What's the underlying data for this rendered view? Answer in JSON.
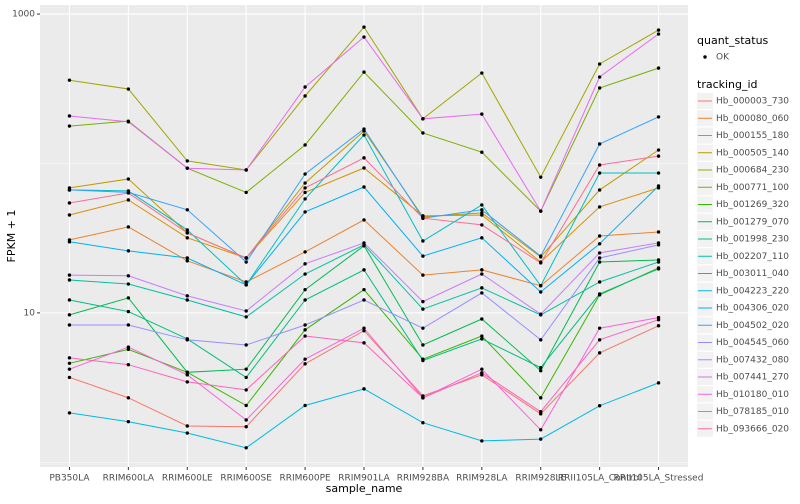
{
  "chart_data": {
    "type": "line",
    "x_label": "sample_name",
    "y_label": "FPKM + 1",
    "categories": [
      "PB350LA",
      "RRIM600LA",
      "RRIM600LE",
      "RRIM600SE",
      "RRIM600PE",
      "RRIM901LA",
      "RRIM928BA",
      "RRIM928LA",
      "RRIM928LE",
      "RRII105LA_Control",
      "RRII105LA_Stressed"
    ],
    "log_scale": true,
    "grid": true,
    "ylim": [
      0.93,
      1150
    ],
    "yticks": [
      10,
      1000
    ],
    "point_color": "#000000",
    "shape_legend": {
      "title": "quant_status",
      "labels": [
        "OK"
      ]
    },
    "color_legend_title": "tracking_id",
    "series": [
      {
        "name": "Hb_000003_730",
        "color": "#F8766D",
        "values": [
          3.7,
          2.7,
          1.75,
          1.73,
          4.56,
          7.6,
          2.78,
          3.85,
          2.11,
          5.4,
          8.2
        ]
      },
      {
        "name": "Hb_000080_060",
        "color": "#EA8331",
        "values": [
          30.8,
          37.6,
          22.3,
          16.1,
          25.6,
          41.9,
          17.9,
          19.4,
          15.2,
          32.7,
          34.8
        ]
      },
      {
        "name": "Hb_000155_180",
        "color": "#D89000",
        "values": [
          45.2,
          57,
          31.8,
          23.3,
          64,
          93.3,
          44.6,
          45.2,
          21.9,
          51.2,
          68.6
        ]
      },
      {
        "name": "Hb_000505_140",
        "color": "#C09B00",
        "values": [
          68.6,
          78.7,
          34.3,
          23.3,
          74,
          165,
          43.9,
          46.7,
          23.7,
          66.5,
          123
        ]
      },
      {
        "name": "Hb_000684_230",
        "color": "#A3A500",
        "values": [
          361,
          315,
          104,
          90.5,
          283,
          818,
          199,
          403,
          81,
          463,
          781
        ]
      },
      {
        "name": "Hb_000771_100",
        "color": "#7CAE00",
        "values": [
          178,
          192,
          93,
          64,
          133,
          409,
          160,
          119,
          48,
          320,
          435
        ]
      },
      {
        "name": "Hb_001269_320",
        "color": "#39B600",
        "values": [
          4.6,
          5.7,
          4.0,
          2.4,
          7.7,
          14.3,
          4.9,
          7.0,
          2.7,
          13.2,
          20
        ]
      },
      {
        "name": "Hb_001279_070",
        "color": "#00BB4E",
        "values": [
          9.7,
          12.6,
          4.0,
          4.2,
          14.3,
          28.1,
          6.1,
          9.1,
          4.1,
          21.9,
          22.6
        ]
      },
      {
        "name": "Hb_001998_230",
        "color": "#00BF7D",
        "values": [
          12.2,
          10.2,
          6.7,
          3.7,
          12.2,
          19.4,
          4.8,
          6.7,
          4.3,
          13.4,
          19.7
        ]
      },
      {
        "name": "Hb_002207_110",
        "color": "#00C1A3",
        "values": [
          16.6,
          15.6,
          12.2,
          9.4,
          18.2,
          28.5,
          10.6,
          14.7,
          9.7,
          16.1,
          21.9
        ]
      },
      {
        "name": "Hb_003011_040",
        "color": "#00BFC4",
        "values": [
          66.5,
          65.5,
          35.9,
          15.4,
          57.9,
          155,
          30.3,
          52.8,
          15.2,
          86.3,
          86.3
        ]
      },
      {
        "name": "Hb_004223_220",
        "color": "#00BAE0",
        "values": [
          2.14,
          1.87,
          1.57,
          1.25,
          2.4,
          3.1,
          1.84,
          1.39,
          1.43,
          2.39,
          3.4
        ]
      },
      {
        "name": "Hb_004306_020",
        "color": "#00B0F6",
        "values": [
          29.9,
          26,
          23.3,
          15.4,
          47.4,
          69.6,
          24,
          31.8,
          13.8,
          29,
          70.7
        ]
      },
      {
        "name": "Hb_004502_020",
        "color": "#35A2FF",
        "values": [
          66.5,
          64,
          49,
          21.9,
          85,
          170,
          43,
          49,
          24,
          135,
          205
        ]
      },
      {
        "name": "Hb_004545_060",
        "color": "#9590FF",
        "values": [
          8.3,
          8.3,
          6.6,
          6.1,
          8.3,
          12.2,
          7.9,
          13.6,
          6.6,
          23.3,
          28.5
        ]
      },
      {
        "name": "Hb_007432_080",
        "color": "#C77CFF",
        "values": [
          17.9,
          17.7,
          13,
          10.3,
          21.3,
          29.4,
          11.9,
          18.2,
          9.8,
          25.2,
          29.4
        ]
      },
      {
        "name": "Hb_007441_270",
        "color": "#E76BF3",
        "values": [
          208,
          190,
          93,
          90.5,
          325,
          702,
          199,
          214,
          48,
          379,
          735
        ]
      },
      {
        "name": "Hb_010180_010",
        "color": "#FA62DB",
        "values": [
          4.2,
          5.9,
          3.85,
          1.92,
          4.9,
          7.9,
          2.7,
          4.2,
          1.65,
          7.9,
          9.3
        ]
      },
      {
        "name": "Hb_078185_010",
        "color": "#FF62BC",
        "values": [
          5.0,
          4.5,
          3.45,
          3.05,
          7.0,
          6.3,
          2.7,
          3.97,
          2.18,
          6.6,
          9.0
        ]
      },
      {
        "name": "Hb_093666_020",
        "color": "#FF6C91",
        "values": [
          54.4,
          63.5,
          34.3,
          23.3,
          68.6,
          109,
          43,
          38.8,
          21.6,
          97.7,
          112
        ]
      }
    ]
  }
}
